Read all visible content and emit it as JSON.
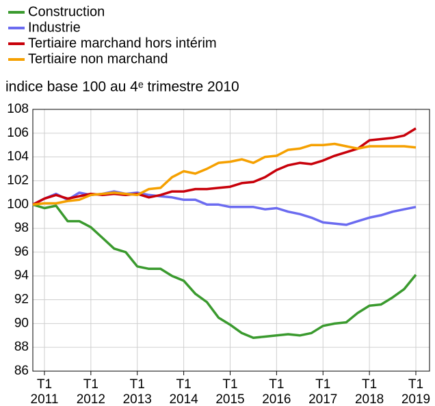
{
  "chart_data": {
    "type": "line",
    "subtitle": "indice base 100 au 4ᵉ trimestre 2010",
    "categories": [
      null,
      "T1 2011",
      null,
      null,
      null,
      "T1 2012",
      null,
      null,
      null,
      "T1 2013",
      null,
      null,
      null,
      "T1 2014",
      null,
      null,
      null,
      "T1 2015",
      null,
      null,
      null,
      "T1 2016",
      null,
      null,
      null,
      "T1 2017",
      null,
      null,
      null,
      "T1 2018",
      null,
      null,
      null,
      "T1 2019"
    ],
    "series": [
      {
        "name": "Construction",
        "color": "#3a9a2e",
        "values": [
          100,
          99.7,
          99.9,
          98.6,
          98.6,
          98.1,
          97.2,
          96.3,
          96.0,
          94.8,
          94.6,
          94.6,
          94.0,
          93.6,
          92.5,
          91.8,
          90.5,
          89.9,
          89.2,
          88.8,
          88.9,
          89.0,
          89.1,
          89.0,
          89.2,
          89.8,
          90.0,
          90.1,
          90.9,
          91.5,
          91.6,
          92.2,
          92.9,
          94.1
        ]
      },
      {
        "name": "Industrie",
        "color": "#6b6bf0",
        "values": [
          100,
          100.5,
          100.9,
          100.4,
          101.0,
          100.8,
          100.9,
          101.1,
          100.9,
          101.0,
          100.8,
          100.7,
          100.6,
          100.4,
          100.4,
          100.0,
          100.0,
          99.8,
          99.8,
          99.8,
          99.6,
          99.7,
          99.4,
          99.2,
          98.9,
          98.5,
          98.4,
          98.3,
          98.6,
          98.9,
          99.1,
          99.4,
          99.6,
          99.8
        ]
      },
      {
        "name": "Tertiaire marchand hors intérim",
        "color": "#c8000a",
        "values": [
          100,
          100.5,
          100.8,
          100.5,
          100.7,
          100.9,
          100.8,
          100.9,
          100.8,
          100.9,
          100.6,
          100.8,
          101.1,
          101.1,
          101.3,
          101.3,
          101.4,
          101.5,
          101.8,
          101.9,
          102.3,
          102.9,
          103.3,
          103.5,
          103.4,
          103.7,
          104.1,
          104.4,
          104.7,
          105.4,
          105.5,
          105.6,
          105.8,
          106.4
        ]
      },
      {
        "name": "Tertiaire non marchand",
        "color": "#f5a000",
        "values": [
          100,
          100.1,
          100.1,
          100.3,
          100.4,
          100.8,
          100.9,
          101.0,
          100.9,
          100.8,
          101.3,
          101.4,
          102.3,
          102.8,
          102.6,
          103.0,
          103.5,
          103.6,
          103.8,
          103.5,
          104.0,
          104.1,
          104.6,
          104.7,
          105.0,
          105.0,
          105.1,
          104.9,
          104.7,
          104.9,
          104.9,
          104.9,
          104.9,
          104.8
        ]
      }
    ],
    "ylim": [
      86,
      108
    ],
    "yticks": [
      86,
      88,
      90,
      92,
      94,
      96,
      98,
      100,
      102,
      104,
      106,
      108
    ],
    "grid": true
  }
}
